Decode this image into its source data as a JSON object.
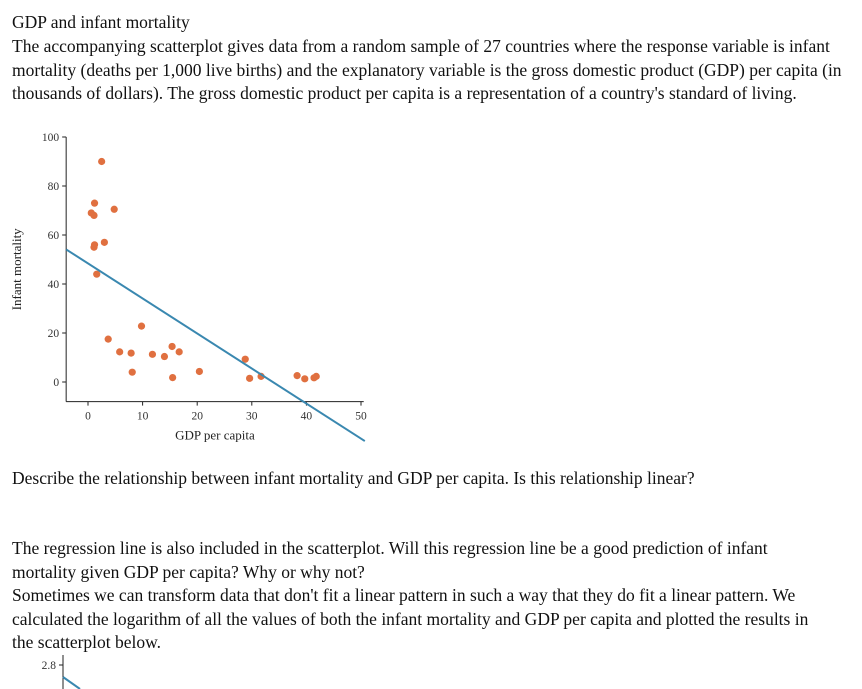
{
  "title": "GDP and infant mortality",
  "intro": "The accompanying scatterplot gives data from a random sample of 27 countries where the response variable is infant mortality (deaths per 1,000 live births) and the explanatory variable is the gross domestic product (GDP) per capita (in thousands of dollars). The gross domestic product per capita is a representation of a country's standard of living.",
  "question1": "Describe the relationship between infant mortality and GDP per capita. Is this relationship linear?",
  "question2": "The regression line is also included in the scatterplot. Will this regression line be a good prediction of infant mortality given GDP per capita? Why or why not?",
  "transform_text": "Sometimes we can transform data that don't fit a linear pattern in such a way that they do fit a linear pattern. We calculated the logarithm of all the values of both the infant mortality and GDP per capita and plotted the results in the scatterplot below.",
  "chart_data": [
    {
      "type": "scatter",
      "xlabel": "GDP per capita",
      "ylabel": "Infant mortality",
      "xlim": [
        -4,
        50.5
      ],
      "ylim": [
        -8,
        100
      ],
      "xticks": [
        "0",
        "10",
        "20",
        "30",
        "40",
        "50"
      ],
      "yticks": [
        "0",
        "20",
        "40",
        "60",
        "80",
        "100"
      ],
      "grid": false,
      "point_color": "#e07040",
      "line_color": "#3a88b0",
      "regression_line": {
        "slope": -1.43,
        "intercept": 48.4,
        "x_range": [
          -4,
          50.7
        ]
      },
      "points": [
        [
          2.5,
          90
        ],
        [
          1.2,
          73
        ],
        [
          4.8,
          70.5
        ],
        [
          0.6,
          69
        ],
        [
          1.1,
          68
        ],
        [
          1.2,
          56
        ],
        [
          1.1,
          55
        ],
        [
          3.0,
          57
        ],
        [
          1.6,
          44
        ],
        [
          3.7,
          17.5
        ],
        [
          5.8,
          12.3
        ],
        [
          7.9,
          11.8
        ],
        [
          8.1,
          4
        ],
        [
          9.8,
          22.8
        ],
        [
          11.8,
          11.3
        ],
        [
          14.0,
          10.4
        ],
        [
          15.4,
          14.5
        ],
        [
          16.7,
          12.3
        ],
        [
          15.5,
          1.8
        ],
        [
          20.4,
          4.3
        ],
        [
          28.8,
          9.3
        ],
        [
          29.6,
          1.5
        ],
        [
          31.7,
          2.3
        ],
        [
          38.3,
          2.6
        ],
        [
          39.7,
          1.3
        ],
        [
          41.4,
          1.7
        ],
        [
          41.8,
          2.3
        ]
      ]
    },
    {
      "type": "scatter",
      "yticks": [
        "2.8"
      ],
      "line_color": "#3a88b0"
    }
  ]
}
